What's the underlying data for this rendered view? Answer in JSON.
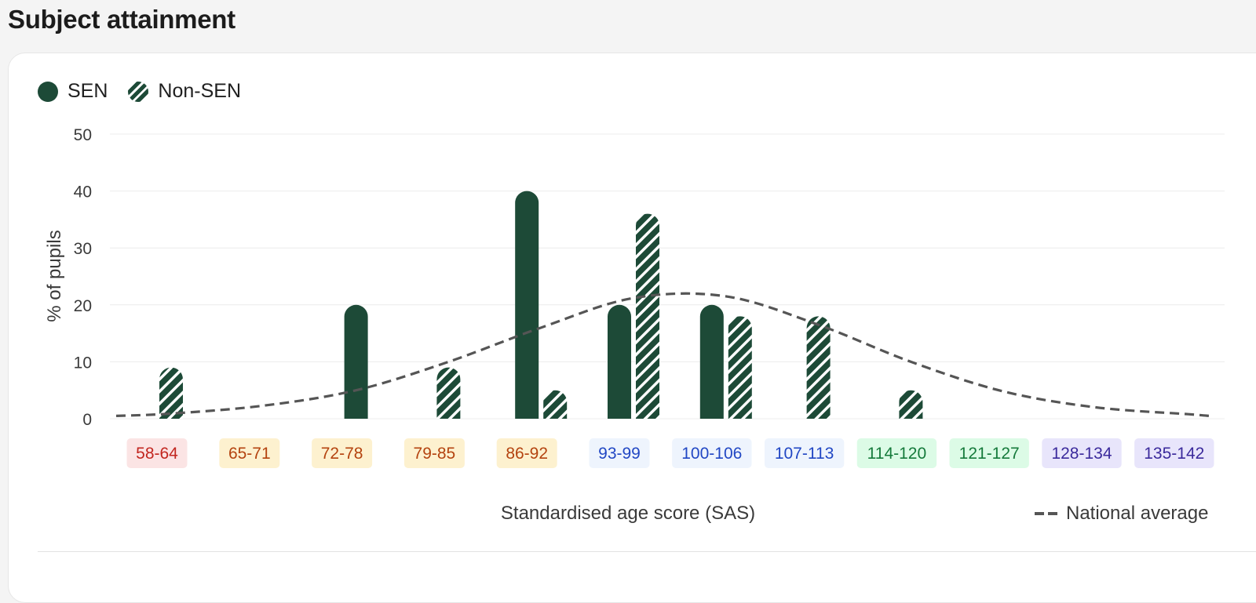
{
  "page": {
    "title": "Subject attainment"
  },
  "legend": {
    "items": [
      {
        "label": "SEN",
        "style": "solid"
      },
      {
        "label": "Non-SEN",
        "style": "hatched"
      }
    ],
    "national_average_label": "National average"
  },
  "colors": {
    "bar": "#1d4a37",
    "national_average_line": "#555555"
  },
  "chart_data": {
    "type": "bar",
    "title": "",
    "xlabel": "Standardised age score (SAS)",
    "ylabel": "% of pupils",
    "ylim": [
      0,
      50
    ],
    "yticks": [
      0,
      10,
      20,
      30,
      40,
      50
    ],
    "grid": true,
    "legend_position": "top-left",
    "categories": [
      {
        "label": "58-64",
        "bg": "#fbe4e4",
        "fg": "#c2261f"
      },
      {
        "label": "65-71",
        "bg": "#fdf1cf",
        "fg": "#b4430f"
      },
      {
        "label": "72-78",
        "bg": "#fdf1cf",
        "fg": "#b4430f"
      },
      {
        "label": "79-85",
        "bg": "#fdf1cf",
        "fg": "#b4430f"
      },
      {
        "label": "86-92",
        "bg": "#fdf1cf",
        "fg": "#b4430f"
      },
      {
        "label": "93-99",
        "bg": "#eef4fd",
        "fg": "#2147c4"
      },
      {
        "label": "100-106",
        "bg": "#eef4fd",
        "fg": "#2147c4"
      },
      {
        "label": "107-113",
        "bg": "#eef4fd",
        "fg": "#2147c4"
      },
      {
        "label": "114-120",
        "bg": "#dcfbe6",
        "fg": "#157a3b"
      },
      {
        "label": "121-127",
        "bg": "#dcfbe6",
        "fg": "#157a3b"
      },
      {
        "label": "128-134",
        "bg": "#e8e5fb",
        "fg": "#3b2a9c"
      },
      {
        "label": "135-142",
        "bg": "#e8e5fb",
        "fg": "#3b2a9c"
      }
    ],
    "series": [
      {
        "name": "SEN",
        "style": "solid",
        "values": [
          0,
          0,
          20,
          0,
          40,
          20,
          20,
          0,
          0,
          0,
          0,
          0
        ]
      },
      {
        "name": "Non-SEN",
        "style": "hatched",
        "values": [
          9,
          0,
          0,
          9,
          5,
          36,
          18,
          18,
          5,
          0,
          0,
          0
        ]
      }
    ],
    "national_average": {
      "style": "dashed",
      "values": [
        0.9,
        2.3,
        5,
        10,
        16,
        21.2,
        21.5,
        16.5,
        10,
        4.8,
        2,
        0.8
      ]
    }
  }
}
